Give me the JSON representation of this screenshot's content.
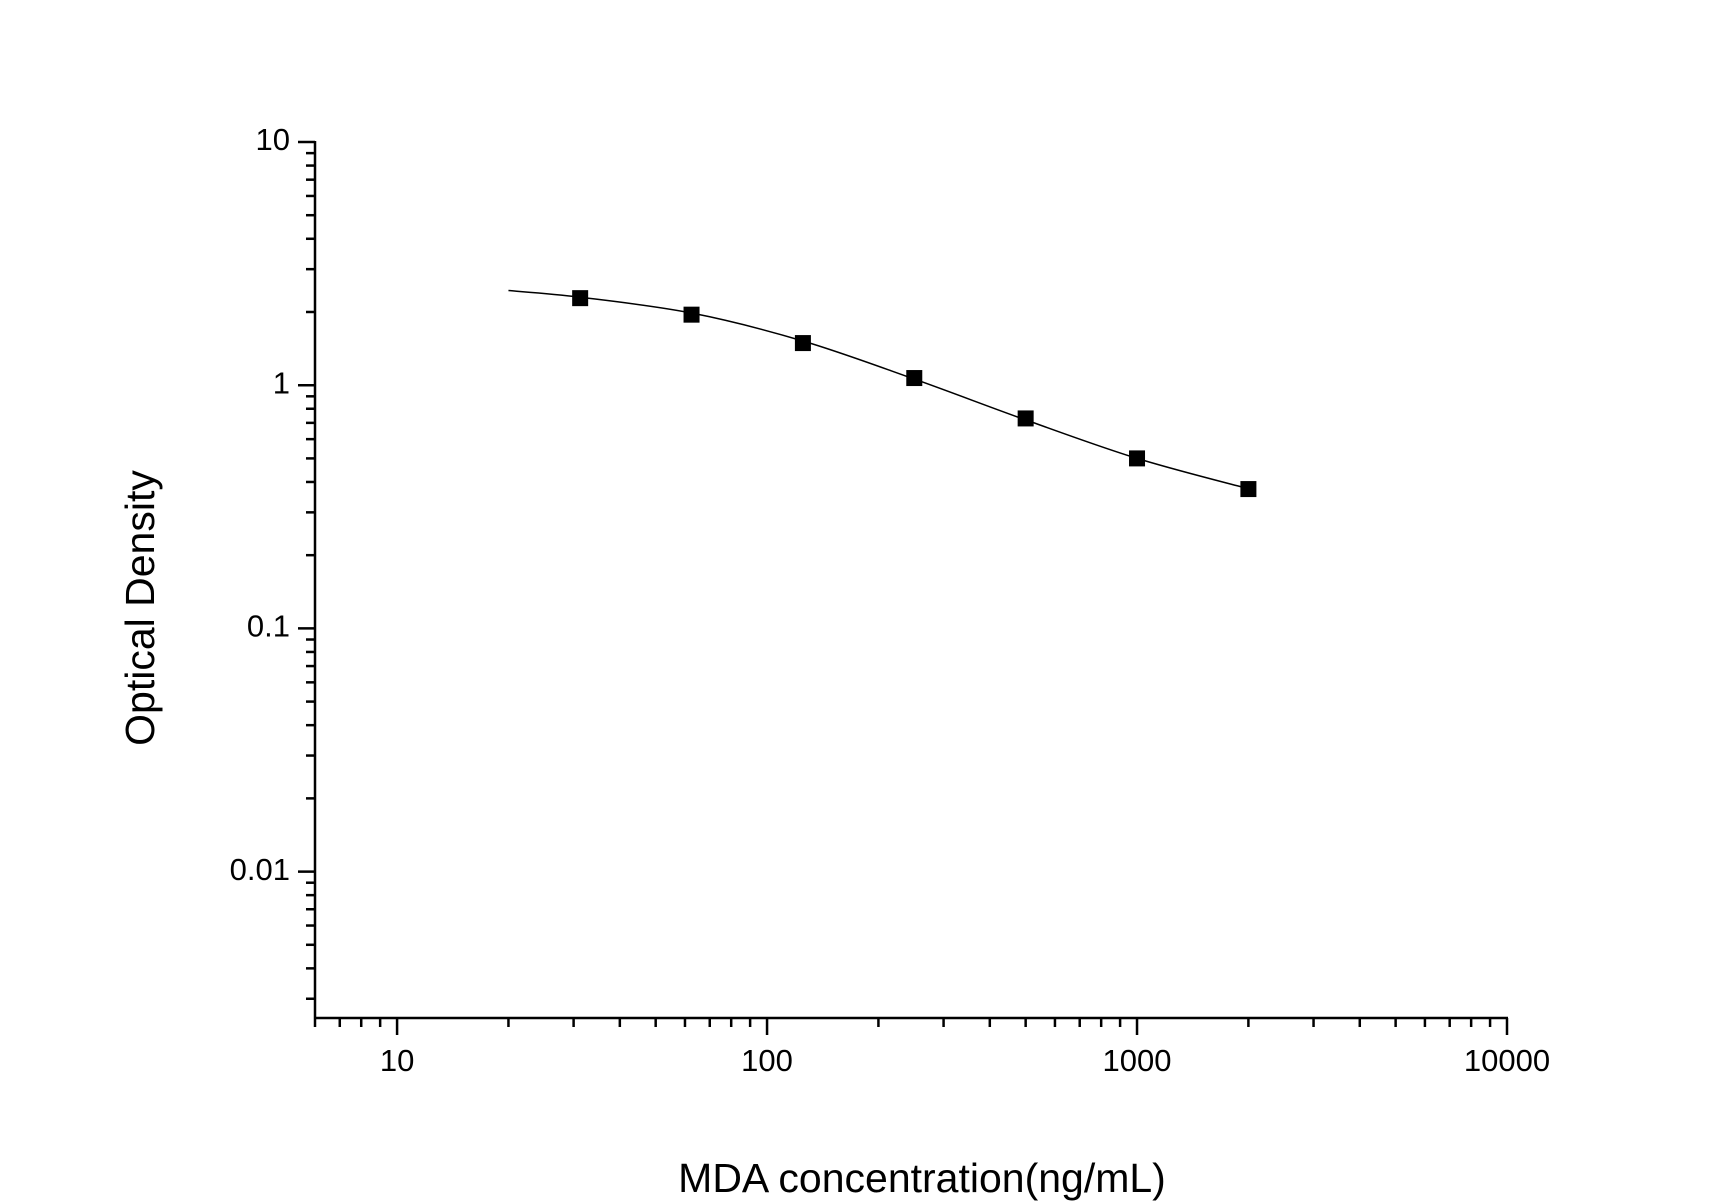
{
  "chart_data": {
    "type": "scatter",
    "x_label": "MDA concentration(ng/mL)",
    "y_label": "Optical Density",
    "xscale": "log",
    "yscale": "log",
    "xlim": [
      6,
      10000
    ],
    "ylim": [
      0.0025,
      10
    ],
    "xticks": [
      10,
      100,
      1000,
      10000
    ],
    "yticks": [
      0.01,
      0.1,
      1,
      10
    ],
    "grid": false,
    "series": [
      {
        "color": "#000000",
        "marker": "square",
        "x": [
          31.25,
          62.5,
          125,
          250,
          500,
          1000,
          2000
        ],
        "values": [
          2.28,
          1.95,
          1.49,
          1.07,
          0.73,
          0.5,
          0.374
        ]
      },
      {
        "color": "#000000",
        "marker": "none",
        "line": true,
        "x": [
          20,
          31.25,
          62.5,
          125,
          250,
          500,
          1000,
          2000
        ],
        "values": [
          2.45,
          2.3,
          1.98,
          1.52,
          1.06,
          0.72,
          0.5,
          0.375
        ]
      }
    ]
  }
}
